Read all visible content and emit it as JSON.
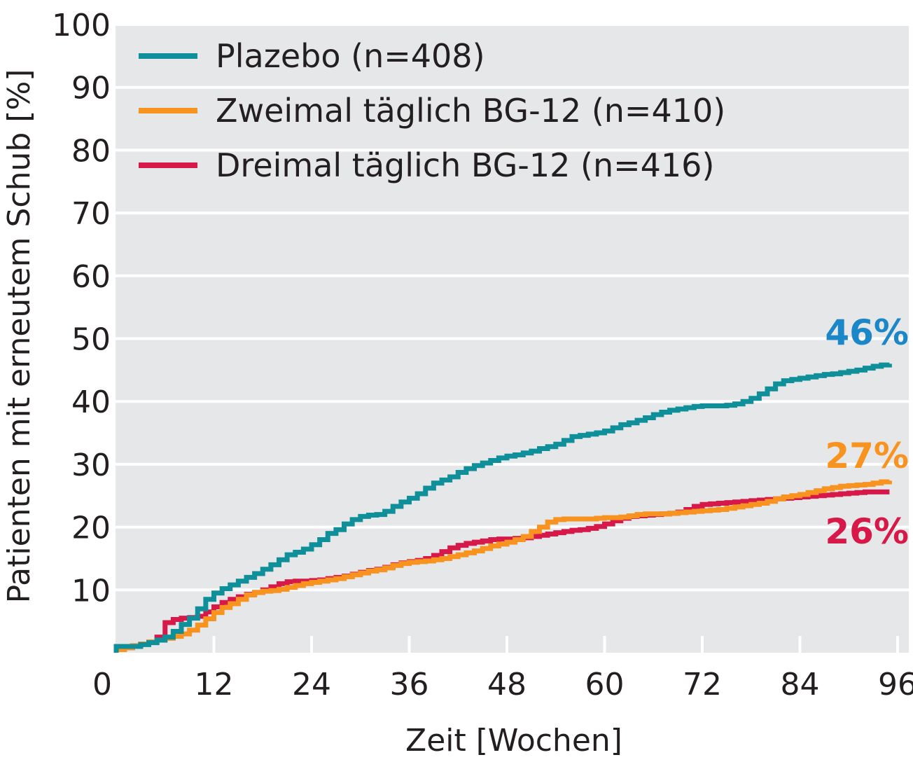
{
  "colors": {
    "background": "#e6e7e8",
    "grid": "#ffffff",
    "plazebo": "#0f8f99",
    "zweimal": "#f7931e",
    "dreimal": "#d7194a",
    "label_plazebo": "#1b87c9",
    "label_zweimal": "#f7931e",
    "label_dreimal": "#d7194a",
    "text": "#231f20"
  },
  "chart_data": {
    "type": "line",
    "title": "",
    "xlabel": "Zeit [Wochen]",
    "ylabel": "Patienten mit erneutem Schub [%]",
    "xlim": [
      0,
      97
    ],
    "ylim": [
      0,
      100
    ],
    "xticks": [
      0,
      12,
      24,
      36,
      48,
      60,
      72,
      84,
      96
    ],
    "yticks": [
      10,
      20,
      30,
      40,
      50,
      60,
      70,
      80,
      90,
      100
    ],
    "grid": true,
    "legend_position": "top-left",
    "series": [
      {
        "name": "Plazebo (n=408)",
        "color": "plazebo",
        "end_label": "46%",
        "end_label_color": "label_plazebo",
        "points": [
          [
            0,
            0
          ],
          [
            0,
            1
          ],
          [
            1,
            1
          ],
          [
            2,
            1
          ],
          [
            3,
            1.3
          ],
          [
            4,
            1.6
          ],
          [
            5,
            2
          ],
          [
            6,
            2.5
          ],
          [
            7,
            3.4
          ],
          [
            8,
            4.5
          ],
          [
            9,
            5.5
          ],
          [
            10,
            7
          ],
          [
            11,
            8.5
          ],
          [
            12,
            9.5
          ],
          [
            13,
            10.2
          ],
          [
            14,
            10.8
          ],
          [
            15,
            11.4
          ],
          [
            16,
            12
          ],
          [
            17,
            12.6
          ],
          [
            18,
            13.3
          ],
          [
            19,
            14
          ],
          [
            20,
            14.8
          ],
          [
            21,
            15.6
          ],
          [
            22,
            16
          ],
          [
            23,
            16.5
          ],
          [
            24,
            17.2
          ],
          [
            25,
            18
          ],
          [
            26,
            19
          ],
          [
            27,
            19.6
          ],
          [
            28,
            20.5
          ],
          [
            29,
            21.2
          ],
          [
            30,
            21.7
          ],
          [
            31,
            21.9
          ],
          [
            32,
            22
          ],
          [
            33,
            22.5
          ],
          [
            34,
            23.3
          ],
          [
            35,
            24
          ],
          [
            36,
            24.6
          ],
          [
            37,
            25.3
          ],
          [
            38,
            26.2
          ],
          [
            39,
            27
          ],
          [
            40,
            27.5
          ],
          [
            41,
            28
          ],
          [
            42,
            28.7
          ],
          [
            43,
            29.3
          ],
          [
            44,
            29.8
          ],
          [
            45,
            30.2
          ],
          [
            46,
            30.6
          ],
          [
            47,
            31
          ],
          [
            48,
            31.3
          ],
          [
            49,
            31.5
          ],
          [
            50,
            31.8
          ],
          [
            51,
            32.1
          ],
          [
            52,
            32.5
          ],
          [
            53,
            32.8
          ],
          [
            54,
            33.2
          ],
          [
            55,
            33.8
          ],
          [
            56,
            34.4
          ],
          [
            57,
            34.6
          ],
          [
            58,
            34.8
          ],
          [
            59,
            35
          ],
          [
            60,
            35.3
          ],
          [
            61,
            35.8
          ],
          [
            62,
            36.3
          ],
          [
            63,
            36.6
          ],
          [
            64,
            37
          ],
          [
            65,
            37.4
          ],
          [
            66,
            37.9
          ],
          [
            67,
            38.3
          ],
          [
            68,
            38.6
          ],
          [
            69,
            38.8
          ],
          [
            70,
            39
          ],
          [
            71,
            39.2
          ],
          [
            72,
            39.3
          ],
          [
            73,
            39.3
          ],
          [
            74,
            39.3
          ],
          [
            75,
            39.4
          ],
          [
            76,
            39.6
          ],
          [
            77,
            40
          ],
          [
            78,
            40.5
          ],
          [
            79,
            41.2
          ],
          [
            80,
            42
          ],
          [
            81,
            42.8
          ],
          [
            82,
            43.3
          ],
          [
            83,
            43.5
          ],
          [
            84,
            43.7
          ],
          [
            85,
            43.9
          ],
          [
            86,
            44.1
          ],
          [
            87,
            44.3
          ],
          [
            88,
            44.4
          ],
          [
            89,
            44.6
          ],
          [
            90,
            44.8
          ],
          [
            91,
            45
          ],
          [
            92,
            45.3
          ],
          [
            93,
            45.6
          ],
          [
            94,
            45.8
          ],
          [
            95,
            46
          ]
        ]
      },
      {
        "name": "Zweimal täglich BG-12 (n=410)",
        "color": "zweimal",
        "end_label": "27%",
        "end_label_color": "label_zweimal",
        "points": [
          [
            0,
            0
          ],
          [
            0,
            0.5
          ],
          [
            1,
            0.8
          ],
          [
            2,
            1.1
          ],
          [
            3,
            1.4
          ],
          [
            4,
            1.7
          ],
          [
            5,
            2
          ],
          [
            6,
            2.3
          ],
          [
            7,
            2.6
          ],
          [
            8,
            3
          ],
          [
            9,
            3.6
          ],
          [
            10,
            4.4
          ],
          [
            11,
            5.4
          ],
          [
            12,
            6.4
          ],
          [
            13,
            7.2
          ],
          [
            14,
            7.8
          ],
          [
            15,
            8.5
          ],
          [
            16,
            9.2
          ],
          [
            17,
            9.6
          ],
          [
            18,
            9.8
          ],
          [
            19,
            9.9
          ],
          [
            20,
            10.1
          ],
          [
            21,
            10.4
          ],
          [
            22,
            10.7
          ],
          [
            23,
            11
          ],
          [
            24,
            11.2
          ],
          [
            25,
            11.4
          ],
          [
            26,
            11.6
          ],
          [
            27,
            11.8
          ],
          [
            28,
            12.1
          ],
          [
            29,
            12.4
          ],
          [
            30,
            12.7
          ],
          [
            31,
            13
          ],
          [
            32,
            13.2
          ],
          [
            33,
            13.5
          ],
          [
            34,
            13.9
          ],
          [
            35,
            14.2
          ],
          [
            36,
            14.4
          ],
          [
            37,
            14.5
          ],
          [
            38,
            14.6
          ],
          [
            39,
            14.8
          ],
          [
            40,
            15
          ],
          [
            41,
            15.3
          ],
          [
            42,
            15.6
          ],
          [
            43,
            15.9
          ],
          [
            44,
            16.2
          ],
          [
            45,
            16.6
          ],
          [
            46,
            17
          ],
          [
            47,
            17.3
          ],
          [
            48,
            17.6
          ],
          [
            49,
            18
          ],
          [
            50,
            18.5
          ],
          [
            51,
            19.3
          ],
          [
            52,
            20
          ],
          [
            53,
            20.8
          ],
          [
            54,
            21.2
          ],
          [
            55,
            21.3
          ],
          [
            56,
            21.3
          ],
          [
            57,
            21.3
          ],
          [
            58,
            21.3
          ],
          [
            59,
            21.4
          ],
          [
            60,
            21.5
          ],
          [
            61,
            21.5
          ],
          [
            62,
            21.6
          ],
          [
            63,
            21.8
          ],
          [
            64,
            22
          ],
          [
            65,
            22.1
          ],
          [
            66,
            22.1
          ],
          [
            67,
            22.1
          ],
          [
            68,
            22.2
          ],
          [
            69,
            22.3
          ],
          [
            70,
            22.4
          ],
          [
            71,
            22.5
          ],
          [
            72,
            22.6
          ],
          [
            73,
            22.7
          ],
          [
            74,
            22.8
          ],
          [
            75,
            23
          ],
          [
            76,
            23.2
          ],
          [
            77,
            23.4
          ],
          [
            78,
            23.6
          ],
          [
            79,
            23.8
          ],
          [
            80,
            24.1
          ],
          [
            81,
            24.5
          ],
          [
            82,
            24.8
          ],
          [
            83,
            25
          ],
          [
            84,
            25.2
          ],
          [
            85,
            25.5
          ],
          [
            86,
            25.8
          ],
          [
            87,
            26.1
          ],
          [
            88,
            26.3
          ],
          [
            89,
            26.5
          ],
          [
            90,
            26.6
          ],
          [
            91,
            26.7
          ],
          [
            92,
            26.8
          ],
          [
            93,
            27
          ],
          [
            94,
            27.2
          ],
          [
            95,
            27.4
          ]
        ]
      },
      {
        "name": "Dreimal täglich BG-12 (n=416)",
        "color": "dreimal",
        "end_label": "26%",
        "end_label_color": "label_dreimal",
        "points": [
          [
            0,
            0
          ],
          [
            0,
            0.5
          ],
          [
            1,
            0.8
          ],
          [
            2,
            1.1
          ],
          [
            3,
            1.4
          ],
          [
            4,
            1.7
          ],
          [
            5,
            2.5
          ],
          [
            6,
            4.8
          ],
          [
            7,
            5.3
          ],
          [
            8,
            5.5
          ],
          [
            9,
            5.6
          ],
          [
            10,
            5.8
          ],
          [
            11,
            6.5
          ],
          [
            12,
            7.3
          ],
          [
            13,
            8
          ],
          [
            14,
            8.5
          ],
          [
            15,
            8.9
          ],
          [
            16,
            9.3
          ],
          [
            17,
            9.6
          ],
          [
            18,
            10
          ],
          [
            19,
            10.5
          ],
          [
            20,
            11
          ],
          [
            21,
            11.3
          ],
          [
            22,
            11.4
          ],
          [
            23,
            11.4
          ],
          [
            24,
            11.5
          ],
          [
            25,
            11.6
          ],
          [
            26,
            11.8
          ],
          [
            27,
            12
          ],
          [
            28,
            12.2
          ],
          [
            29,
            12.5
          ],
          [
            30,
            12.8
          ],
          [
            31,
            13.1
          ],
          [
            32,
            13.3
          ],
          [
            33,
            13.6
          ],
          [
            34,
            14
          ],
          [
            35,
            14.3
          ],
          [
            36,
            14.5
          ],
          [
            37,
            14.7
          ],
          [
            38,
            15
          ],
          [
            39,
            15.5
          ],
          [
            40,
            16.1
          ],
          [
            41,
            16.7
          ],
          [
            42,
            17.1
          ],
          [
            43,
            17.4
          ],
          [
            44,
            17.6
          ],
          [
            45,
            17.8
          ],
          [
            46,
            18
          ],
          [
            47,
            18.1
          ],
          [
            48,
            18.1
          ],
          [
            49,
            18.2
          ],
          [
            50,
            18.3
          ],
          [
            51,
            18.5
          ],
          [
            52,
            18.7
          ],
          [
            53,
            18.9
          ],
          [
            54,
            19.1
          ],
          [
            55,
            19.3
          ],
          [
            56,
            19.5
          ],
          [
            57,
            19.6
          ],
          [
            58,
            19.8
          ],
          [
            59,
            20.1
          ],
          [
            60,
            20.5
          ],
          [
            61,
            21
          ],
          [
            62,
            21.4
          ],
          [
            63,
            21.7
          ],
          [
            64,
            21.8
          ],
          [
            65,
            21.9
          ],
          [
            66,
            22
          ],
          [
            67,
            22.1
          ],
          [
            68,
            22.2
          ],
          [
            69,
            22.4
          ],
          [
            70,
            22.8
          ],
          [
            71,
            23.3
          ],
          [
            72,
            23.6
          ],
          [
            73,
            23.7
          ],
          [
            74,
            23.8
          ],
          [
            75,
            23.9
          ],
          [
            76,
            24
          ],
          [
            77,
            24.1
          ],
          [
            78,
            24.2
          ],
          [
            79,
            24.3
          ],
          [
            80,
            24.4
          ],
          [
            81,
            24.5
          ],
          [
            82,
            24.6
          ],
          [
            83,
            24.7
          ],
          [
            84,
            24.8
          ],
          [
            85,
            24.9
          ],
          [
            86,
            25
          ],
          [
            87,
            25.1
          ],
          [
            88,
            25.2
          ],
          [
            89,
            25.3
          ],
          [
            90,
            25.4
          ],
          [
            91,
            25.5
          ],
          [
            92,
            25.6
          ],
          [
            93,
            25.6
          ],
          [
            94,
            25.6
          ],
          [
            95,
            25.6
          ]
        ]
      }
    ]
  }
}
